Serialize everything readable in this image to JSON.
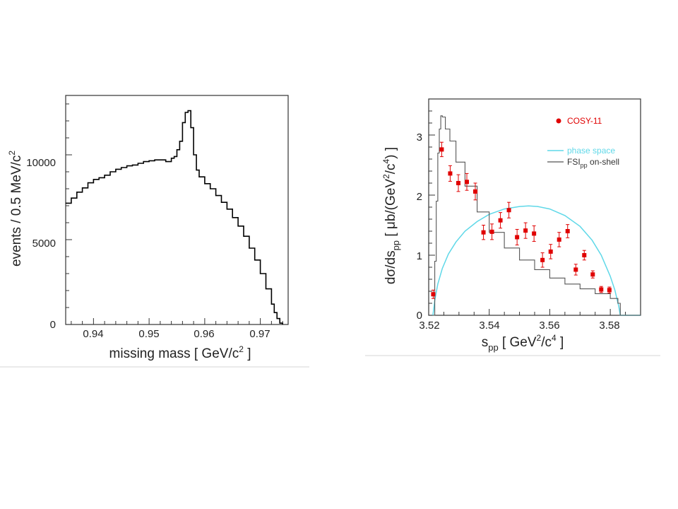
{
  "chart_data": [
    {
      "type": "line",
      "step": true,
      "xlim": [
        0.935,
        0.975
      ],
      "ylim": [
        0,
        13500
      ],
      "x_ticks": [
        "0.94",
        "0.95",
        "0.96",
        "0.97"
      ],
      "y_ticks": [
        "0",
        "5000",
        "10000"
      ],
      "xlabel": {
        "main": "missing mass [ GeV/c",
        "sup": "2",
        "tail": " ]"
      },
      "ylabel": {
        "main": "events / 0.5 MeV/c",
        "sup": "2"
      },
      "series": [
        {
          "color": "#000000",
          "x": [
            0.935,
            0.936,
            0.937,
            0.938,
            0.939,
            0.94,
            0.941,
            0.942,
            0.943,
            0.944,
            0.945,
            0.946,
            0.947,
            0.948,
            0.949,
            0.95,
            0.951,
            0.952,
            0.953,
            0.954,
            0.9545,
            0.955,
            0.9555,
            0.956,
            0.9565,
            0.957,
            0.9575,
            0.958,
            0.9585,
            0.959,
            0.96,
            0.961,
            0.962,
            0.963,
            0.964,
            0.965,
            0.966,
            0.967,
            0.968,
            0.969,
            0.97,
            0.971,
            0.972,
            0.9725,
            0.973,
            0.9735,
            0.974
          ],
          "values": [
            7150,
            7450,
            7800,
            8050,
            8350,
            8550,
            8650,
            8800,
            9000,
            9150,
            9250,
            9350,
            9400,
            9500,
            9600,
            9650,
            9700,
            9700,
            9600,
            9800,
            9900,
            10300,
            10800,
            11900,
            12500,
            12600,
            11600,
            10000,
            9100,
            8700,
            8300,
            8000,
            7600,
            7200,
            6800,
            6300,
            5800,
            5200,
            4500,
            3800,
            3000,
            2100,
            1200,
            700,
            350,
            80,
            0
          ]
        }
      ]
    },
    {
      "type": "scatter",
      "xlim": [
        3.52,
        3.59
      ],
      "ylim": [
        0,
        3.6
      ],
      "x_ticks": [
        "3.52",
        "3.54",
        "3.56",
        "3.58"
      ],
      "y_ticks": [
        "0",
        "1",
        "2",
        "3"
      ],
      "xlabel": {
        "main": "s",
        "sub": "pp",
        "middle": " [ GeV",
        "sup": "2",
        "tail1": "/c",
        "sup2": "4",
        "tail2": " ]"
      },
      "ylabel": {
        "main": "dσ/ds",
        "sub": "pp",
        "middle": " [ μb/(GeV",
        "sup": "2",
        "tail1": "/c",
        "sup2": "4",
        "tail2": ") ]"
      },
      "legend": [
        {
          "name": "COSY-11",
          "color": "#e00000",
          "kind": "point"
        },
        {
          "name": "phase space",
          "color": "#5fd8e8",
          "kind": "line"
        },
        {
          "name": "FSI",
          "sub": "pp",
          "tail": " on-shell",
          "color": "#555555",
          "kind": "line"
        }
      ],
      "series": [
        {
          "name": "COSY-11",
          "color": "#e00000",
          "x": [
            3.5215,
            3.5243,
            3.5271,
            3.5298,
            3.5326,
            3.5354,
            3.5381,
            3.5409,
            3.5437,
            3.5465,
            3.5492,
            3.552,
            3.5548,
            3.5576,
            3.5603,
            3.5631,
            3.5659,
            3.5686,
            3.5714,
            3.5742,
            3.577,
            3.5797
          ],
          "values": [
            0.35,
            2.76,
            2.36,
            2.2,
            2.22,
            2.06,
            1.38,
            1.39,
            1.58,
            1.75,
            1.3,
            1.41,
            1.36,
            0.92,
            1.06,
            1.26,
            1.4,
            0.76,
            1.0,
            0.68,
            0.43,
            0.42
          ],
          "errors": [
            0.07,
            0.12,
            0.13,
            0.14,
            0.14,
            0.14,
            0.12,
            0.13,
            0.13,
            0.13,
            0.13,
            0.13,
            0.13,
            0.12,
            0.12,
            0.12,
            0.11,
            0.09,
            0.08,
            0.06,
            0.05,
            0.05
          ]
        },
        {
          "name": "phase space",
          "color": "#5fd8e8",
          "x": [
            3.5214,
            3.522,
            3.523,
            3.5245,
            3.5265,
            3.529,
            3.532,
            3.536,
            3.54,
            3.545,
            3.55,
            3.553,
            3.556,
            3.56,
            3.565,
            3.57,
            3.574,
            3.577,
            3.58,
            3.5815,
            3.5828,
            3.5833,
            3.59
          ],
          "values": [
            0.0,
            0.25,
            0.52,
            0.78,
            1.02,
            1.22,
            1.4,
            1.56,
            1.68,
            1.77,
            1.81,
            1.82,
            1.81,
            1.77,
            1.66,
            1.48,
            1.25,
            1.0,
            0.65,
            0.42,
            0.15,
            0.0,
            0.0
          ]
        },
        {
          "name": "FSI on-shell",
          "color": "#555555",
          "x": [
            3.5214,
            3.522,
            3.5225,
            3.523,
            3.5235,
            3.524,
            3.5245,
            3.5255,
            3.527,
            3.529,
            3.532,
            3.536,
            3.54,
            3.545,
            3.55,
            3.555,
            3.56,
            3.565,
            3.57,
            3.575,
            3.58,
            3.5825,
            3.5833,
            3.59
          ],
          "values": [
            0.0,
            0.9,
            1.9,
            2.7,
            3.1,
            3.32,
            3.3,
            3.1,
            2.9,
            2.55,
            2.15,
            1.72,
            1.38,
            1.12,
            0.92,
            0.76,
            0.62,
            0.52,
            0.44,
            0.36,
            0.28,
            0.2,
            0.0,
            0.0
          ]
        }
      ]
    }
  ]
}
